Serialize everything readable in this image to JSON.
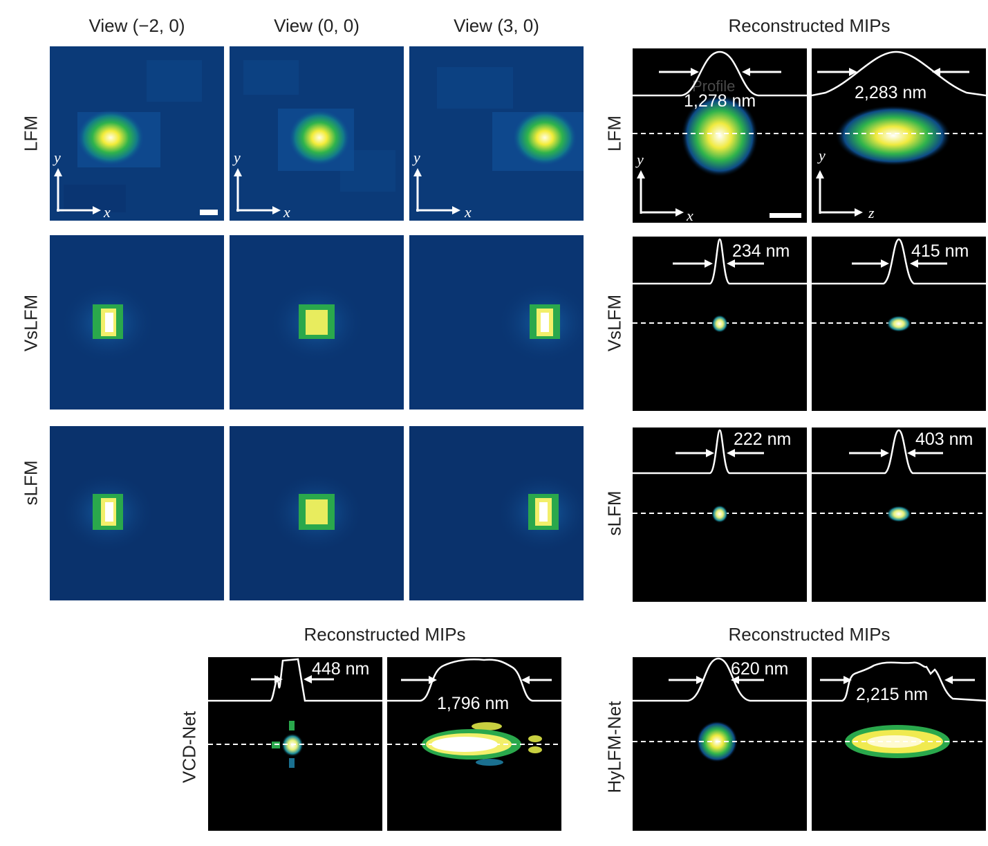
{
  "views": {
    "headers": [
      "View (−2, 0)",
      "View (0, 0)",
      "View (3, 0)"
    ],
    "rows": [
      "LFM",
      "VsLFM",
      "sLFM"
    ]
  },
  "mip": {
    "title_top": "Reconstructed MIPs",
    "title_bottom_left": "Reconstructed MIPs",
    "title_bottom_right": "Reconstructed MIPs",
    "rows": [
      "LFM",
      "VsLFM",
      "sLFM"
    ],
    "bottom_rows": [
      "VCD-Net",
      "HyLFM-Net"
    ]
  },
  "widths": {
    "lfm_xy": "1,278 nm",
    "lfm_yz": "2,283 nm",
    "vslfm_xy": "234 nm",
    "vslfm_yz": "415 nm",
    "slfm_xy": "222 nm",
    "slfm_yz": "403 nm",
    "vcd_xy": "448 nm",
    "vcd_yz": "1,796 nm",
    "hylfm_xy": "620 nm",
    "hylfm_yz": "2,215 nm"
  },
  "overlay_text": "Profile",
  "axes": {
    "x": "x",
    "y": "y",
    "z": "z"
  },
  "colors": {
    "deep_blue": "#0a3470",
    "mid_blue": "#0f4a8e",
    "green": "#22a84a",
    "yellow": "#f0e830",
    "black": "#000000",
    "white": "#ffffff"
  }
}
